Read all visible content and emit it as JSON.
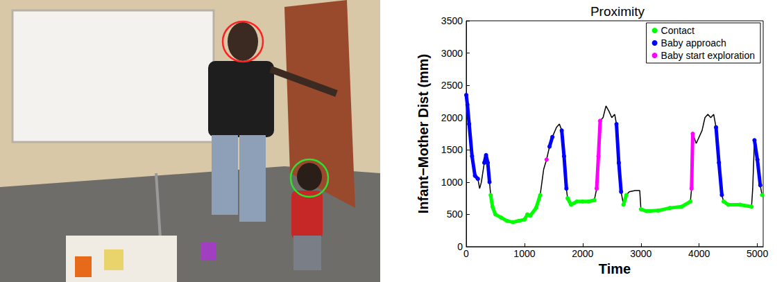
{
  "chart_data": {
    "type": "line",
    "title": "Proximity",
    "x_label": "Time",
    "y_label": "Infant−Mother Dist (mm)",
    "x": [
      0,
      20,
      50,
      100,
      150,
      200,
      230,
      260,
      310,
      340,
      370,
      400,
      420,
      450,
      500,
      600,
      700,
      800,
      900,
      1000,
      1050,
      1100,
      1200,
      1270,
      1330,
      1380,
      1430,
      1480,
      1550,
      1600,
      1640,
      1680,
      1720,
      1740,
      1800,
      1900,
      2000,
      2100,
      2200,
      2240,
      2270,
      2300,
      2350,
      2400,
      2450,
      2500,
      2550,
      2580,
      2620,
      2660,
      2700,
      2750,
      2800,
      2900,
      2980,
      3000,
      3100,
      3300,
      3500,
      3700,
      3850,
      3870,
      3890,
      3950,
      4050,
      4100,
      4150,
      4200,
      4250,
      4290,
      4340,
      4390,
      4420,
      4500,
      4700,
      4900,
      4920,
      4950,
      5000,
      5050,
      5080
    ],
    "series": [
      {
        "color": "#000000",
        "marker": "none",
        "line_style": "solid",
        "values": [
          2350,
          2200,
          1900,
          1400,
          1100,
          1050,
          900,
          1000,
          1300,
          1420,
          1300,
          1000,
          800,
          620,
          500,
          450,
          400,
          380,
          400,
          420,
          500,
          480,
          600,
          800,
          1200,
          1350,
          1550,
          1700,
          1850,
          1900,
          1800,
          1400,
          900,
          750,
          650,
          700,
          700,
          700,
          720,
          900,
          1400,
          1950,
          2000,
          2180,
          2100,
          2000,
          2050,
          1900,
          1300,
          850,
          650,
          800,
          850,
          870,
          870,
          580,
          550,
          560,
          600,
          620,
          700,
          900,
          1750,
          1600,
          1800,
          2000,
          2050,
          2000,
          2050,
          1850,
          1300,
          800,
          700,
          650,
          650,
          620,
          900,
          1650,
          1350,
          950,
          800
        ]
      },
      {
        "name": "Contact",
        "color": "#00ff00",
        "marker": "circle",
        "line_style": "solid",
        "values": [
          null,
          null,
          null,
          null,
          null,
          null,
          null,
          null,
          null,
          null,
          null,
          null,
          800,
          620,
          500,
          450,
          400,
          380,
          400,
          420,
          500,
          480,
          600,
          800,
          null,
          null,
          null,
          null,
          null,
          null,
          null,
          null,
          null,
          750,
          650,
          700,
          700,
          700,
          720,
          null,
          null,
          null,
          null,
          null,
          null,
          null,
          null,
          null,
          null,
          null,
          650,
          800,
          null,
          null,
          null,
          580,
          550,
          560,
          600,
          620,
          700,
          null,
          null,
          null,
          null,
          null,
          null,
          null,
          null,
          null,
          null,
          null,
          700,
          650,
          650,
          620,
          null,
          null,
          null,
          null,
          800
        ]
      },
      {
        "name": "Baby approach",
        "color": "#0000ff",
        "marker": "circle",
        "line_style": "solid",
        "values": [
          2350,
          2200,
          1900,
          1400,
          1100,
          1050,
          null,
          null,
          1300,
          1420,
          1300,
          1000,
          null,
          null,
          null,
          null,
          null,
          null,
          null,
          null,
          null,
          null,
          null,
          null,
          null,
          null,
          1550,
          1700,
          null,
          null,
          1800,
          1400,
          900,
          null,
          null,
          null,
          null,
          null,
          null,
          null,
          null,
          null,
          null,
          null,
          null,
          null,
          null,
          1900,
          1300,
          850,
          null,
          null,
          null,
          null,
          null,
          null,
          null,
          null,
          null,
          null,
          null,
          null,
          null,
          null,
          null,
          null,
          null,
          null,
          null,
          1850,
          1300,
          800,
          null,
          null,
          null,
          null,
          null,
          1650,
          1350,
          950,
          null
        ]
      },
      {
        "name": "Baby start exploration",
        "color": "#ff00ff",
        "marker": "circle",
        "line_style": "solid",
        "values": [
          null,
          null,
          null,
          null,
          null,
          null,
          null,
          null,
          null,
          null,
          null,
          null,
          null,
          null,
          null,
          null,
          null,
          null,
          null,
          null,
          null,
          null,
          null,
          null,
          null,
          1350,
          null,
          null,
          null,
          null,
          null,
          null,
          null,
          null,
          null,
          null,
          null,
          null,
          null,
          900,
          1400,
          1950,
          null,
          null,
          null,
          null,
          null,
          null,
          null,
          null,
          null,
          null,
          null,
          null,
          null,
          null,
          null,
          null,
          null,
          null,
          null,
          900,
          1750,
          null,
          null,
          null,
          null,
          null,
          null,
          null,
          null,
          null,
          null,
          null,
          null,
          null,
          null,
          null,
          null,
          null,
          null
        ]
      }
    ],
    "xlim": [
      0,
      5100
    ],
    "xticks": [
      0,
      1000,
      2000,
      3000,
      4000,
      5000
    ],
    "ylim": [
      0,
      3500
    ],
    "yticks": [
      0,
      500,
      1000,
      1500,
      2000,
      2500,
      3000,
      3500
    ],
    "legend": "upper right",
    "grid": false
  }
}
